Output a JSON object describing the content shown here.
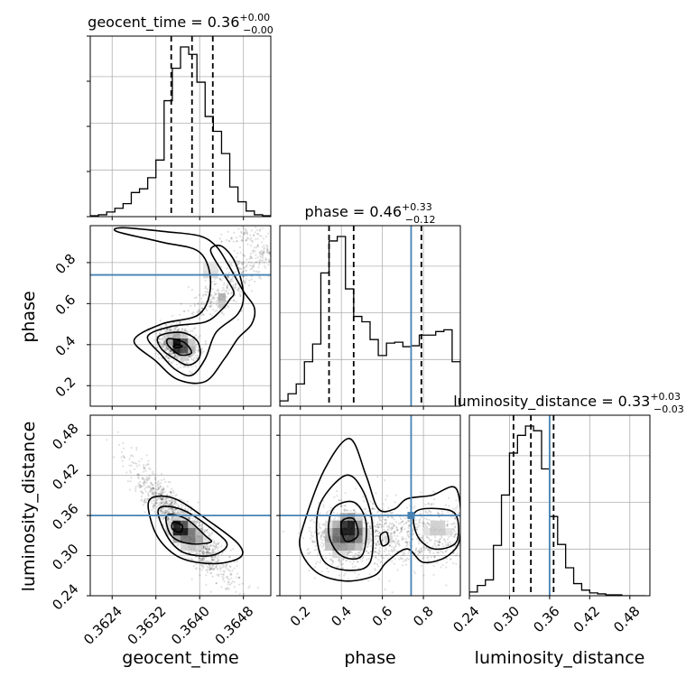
{
  "chart_data": {
    "type": "corner",
    "parameters": [
      "geocent_time",
      "phase",
      "luminosity_distance"
    ],
    "axis_labels": {
      "geocent_time": "geocent_time",
      "phase": "phase",
      "luminosity_distance": "luminosity_distance"
    },
    "ranges": {
      "geocent_time": [
        0.362,
        0.3653
      ],
      "phase": [
        0.1,
        0.98
      ],
      "luminosity_distance": [
        0.24,
        0.51
      ]
    },
    "ticks": {
      "geocent_time": [
        {
          "value": 0.3624,
          "label": "0.3624"
        },
        {
          "value": 0.3632,
          "label": "0.3632"
        },
        {
          "value": 0.364,
          "label": "0.3640"
        },
        {
          "value": 0.3648,
          "label": "0.3648"
        }
      ],
      "phase": [
        {
          "value": 0.2,
          "label": "0.2"
        },
        {
          "value": 0.4,
          "label": "0.4"
        },
        {
          "value": 0.6,
          "label": "0.6"
        },
        {
          "value": 0.8,
          "label": "0.8"
        }
      ],
      "luminosity_distance": [
        {
          "value": 0.24,
          "label": "0.24"
        },
        {
          "value": 0.3,
          "label": "0.30"
        },
        {
          "value": 0.36,
          "label": "0.36"
        },
        {
          "value": 0.42,
          "label": "0.42"
        },
        {
          "value": 0.48,
          "label": "0.48"
        }
      ]
    },
    "truths": {
      "geocent_time": null,
      "phase": 0.74,
      "luminosity_distance": 0.36
    },
    "truth_color": "#4682b4",
    "titles": {
      "geocent_time": {
        "name": "geocent_time",
        "median": "0.36",
        "plus": "+0.00",
        "minus": "−0.00"
      },
      "phase": {
        "name": "phase",
        "median": "0.46",
        "plus": "+0.33",
        "minus": "−0.12"
      },
      "luminosity_distance": {
        "name": "luminosity_distance",
        "median": "0.33",
        "plus": "+0.03",
        "minus": "−0.03"
      }
    },
    "quantiles": {
      "geocent_time": [
        0.36348,
        0.36386,
        0.36424
      ],
      "phase": [
        0.34,
        0.46,
        0.79
      ],
      "luminosity_distance": [
        0.306,
        0.332,
        0.366
      ]
    },
    "histograms": {
      "geocent_time": {
        "edges": [
          0.362,
          0.36215,
          0.3623,
          0.36245,
          0.3626,
          0.36275,
          0.3629,
          0.36305,
          0.3632,
          0.36335,
          0.3635,
          0.36365,
          0.3638,
          0.36395,
          0.3641,
          0.36425,
          0.3644,
          0.36455,
          0.3647,
          0.36485,
          0.365,
          0.36515,
          0.3653
        ],
        "counts": [
          1,
          2,
          5,
          9,
          14,
          26,
          30,
          42,
          61,
          125,
          160,
          183,
          175,
          145,
          108,
          92,
          68,
          32,
          16,
          6,
          2,
          1
        ]
      },
      "phase": {
        "edges": [
          0.1,
          0.14,
          0.18,
          0.22,
          0.26,
          0.3,
          0.34,
          0.38,
          0.42,
          0.46,
          0.5,
          0.54,
          0.58,
          0.62,
          0.66,
          0.7,
          0.74,
          0.78,
          0.82,
          0.86,
          0.9,
          0.94,
          0.98
        ],
        "counts": [
          6,
          14,
          25,
          50,
          70,
          150,
          186,
          191,
          132,
          101,
          95,
          75,
          57,
          71,
          72,
          67,
          68,
          80,
          80,
          84,
          86,
          50
        ]
      },
      "luminosity_distance": {
        "edges": [
          0.24,
          0.252,
          0.264,
          0.276,
          0.288,
          0.3,
          0.312,
          0.324,
          0.336,
          0.348,
          0.36,
          0.372,
          0.384,
          0.396,
          0.408,
          0.42,
          0.432,
          0.444,
          0.456,
          0.468,
          0.48,
          0.492,
          0.504
        ],
        "counts": [
          4,
          11,
          17,
          54,
          108,
          153,
          172,
          182,
          177,
          136,
          85,
          55,
          30,
          13,
          6,
          3,
          2,
          1,
          1,
          0,
          0,
          0
        ]
      }
    },
    "pairs": [
      {
        "x": "geocent_time",
        "y": "phase"
      },
      {
        "x": "geocent_time",
        "y": "luminosity_distance"
      },
      {
        "x": "phase",
        "y": "luminosity_distance"
      }
    ]
  }
}
